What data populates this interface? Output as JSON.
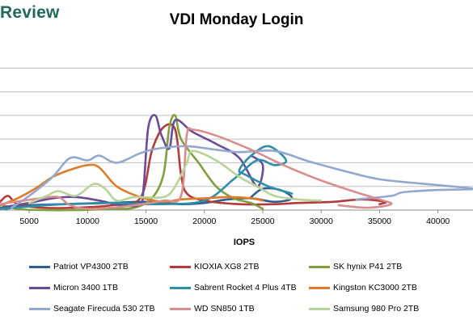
{
  "brand": "Review",
  "chart_data": {
    "type": "line",
    "title": "VDI Monday Login",
    "xlabel": "IOPS",
    "ylabel": "",
    "xlim": [
      2500,
      43000
    ],
    "ylim": [
      0,
      7
    ],
    "x_ticks": [
      5000,
      10000,
      15000,
      20000,
      25000,
      30000,
      35000,
      40000
    ],
    "x_tick_labels": [
      "5000",
      "10000",
      "15000",
      "20000",
      "25000",
      "30000",
      "35000",
      "40000"
    ],
    "y_gridlines": [
      1,
      2,
      3,
      4,
      5,
      6
    ],
    "grid": true,
    "legend_position": "bottom",
    "series": [
      {
        "name": "Patriot VP4300 2TB",
        "color": "#2e5f8e",
        "points": [
          [
            3000,
            0.05
          ],
          [
            5000,
            0.2
          ],
          [
            8000,
            0.25
          ],
          [
            12000,
            0.3
          ],
          [
            15000,
            0.35
          ],
          [
            18000,
            0.25
          ],
          [
            20000,
            0.3
          ],
          [
            22000,
            0.45
          ],
          [
            24000,
            0.5
          ],
          [
            26000,
            0.35
          ],
          [
            27500,
            0.5
          ],
          [
            26500,
            0.85
          ],
          [
            25000,
            0.9
          ],
          [
            24000,
            0.55
          ]
        ]
      },
      {
        "name": "KIOXIA XG8 2TB",
        "color": "#b33b3b",
        "points": [
          [
            2500,
            0.35
          ],
          [
            3200,
            0.6
          ],
          [
            4000,
            0.25
          ],
          [
            6000,
            0.1
          ],
          [
            9000,
            0.1
          ],
          [
            12000,
            0.2
          ],
          [
            14500,
            0.5
          ],
          [
            15500,
            2.5
          ],
          [
            16500,
            3.5
          ],
          [
            17500,
            3.4
          ],
          [
            18000,
            1.5
          ],
          [
            18500,
            0.7
          ],
          [
            20000,
            0.4
          ],
          [
            23000,
            0.25
          ],
          [
            26000,
            0.25
          ],
          [
            28000,
            0.3
          ],
          [
            31000,
            0.35
          ],
          [
            33500,
            0.45
          ],
          [
            35500,
            0.35
          ],
          [
            35000,
            0.25
          ]
        ]
      },
      {
        "name": "SK hynix P41 2TB",
        "color": "#7fa13d",
        "points": [
          [
            2500,
            0.25
          ],
          [
            4000,
            0.05
          ],
          [
            6000,
            0.0
          ],
          [
            9000,
            0.0
          ],
          [
            12000,
            0.05
          ],
          [
            14000,
            0.1
          ],
          [
            15500,
            0.5
          ],
          [
            16500,
            1.5
          ],
          [
            17000,
            3.5
          ],
          [
            17500,
            4.0
          ],
          [
            18000,
            3.0
          ],
          [
            19500,
            2.0
          ],
          [
            21000,
            1.0
          ],
          [
            22500,
            0.5
          ],
          [
            24000,
            0.3
          ],
          [
            25000,
            0.05
          ]
        ]
      },
      {
        "name": "Micron 3400 1TB",
        "color": "#6b4a99",
        "points": [
          [
            2500,
            0.1
          ],
          [
            5000,
            0.3
          ],
          [
            7000,
            0.5
          ],
          [
            9000,
            0.55
          ],
          [
            11000,
            0.4
          ],
          [
            13000,
            0.2
          ],
          [
            14500,
            0.25
          ],
          [
            14800,
            1.0
          ],
          [
            15200,
            3.5
          ],
          [
            15800,
            4.0
          ],
          [
            16300,
            3.2
          ],
          [
            17000,
            2.6
          ],
          [
            17500,
            3.8
          ],
          [
            19000,
            3.3
          ],
          [
            21000,
            2.8
          ],
          [
            23000,
            2.2
          ],
          [
            24500,
            1.0
          ],
          [
            25000,
            1.9
          ],
          [
            24000,
            2.3
          ]
        ]
      },
      {
        "name": "Sabrent Rocket 4 Plus 4TB",
        "color": "#2b8fa8",
        "points": [
          [
            2500,
            0.05
          ],
          [
            5000,
            0.15
          ],
          [
            8000,
            0.25
          ],
          [
            12000,
            0.3
          ],
          [
            16000,
            0.25
          ],
          [
            20000,
            0.4
          ],
          [
            22500,
            1.3
          ],
          [
            24500,
            2.1
          ],
          [
            26000,
            1.9
          ],
          [
            27000,
            2.1
          ],
          [
            25500,
            2.7
          ],
          [
            24000,
            2.3
          ],
          [
            23000,
            1.7
          ],
          [
            23500,
            1.5
          ],
          [
            25500,
            1.0
          ],
          [
            27500,
            0.7
          ]
        ]
      },
      {
        "name": "Kingston KC3000 2TB",
        "color": "#e07b2b",
        "points": [
          [
            2500,
            0.2
          ],
          [
            4000,
            0.5
          ],
          [
            5500,
            0.9
          ],
          [
            7000,
            1.4
          ],
          [
            8500,
            1.7
          ],
          [
            10000,
            1.9
          ],
          [
            11000,
            1.8
          ],
          [
            12500,
            1.0
          ],
          [
            14500,
            0.55
          ],
          [
            16500,
            0.35
          ],
          [
            18000,
            0.45
          ],
          [
            20000,
            0.5
          ],
          [
            22000,
            0.55
          ],
          [
            24000,
            0.5
          ],
          [
            25000,
            0.4
          ]
        ]
      },
      {
        "name": "Seagate Firecuda 530 2TB",
        "color": "#93a8cf",
        "points": [
          [
            3500,
            0.1
          ],
          [
            5000,
            0.6
          ],
          [
            7000,
            1.4
          ],
          [
            8500,
            2.2
          ],
          [
            10000,
            2.1
          ],
          [
            11000,
            2.3
          ],
          [
            12500,
            2.0
          ],
          [
            14500,
            2.4
          ],
          [
            16000,
            2.6
          ],
          [
            18500,
            2.7
          ],
          [
            21000,
            2.55
          ],
          [
            23000,
            2.45
          ],
          [
            26000,
            2.5
          ],
          [
            29000,
            2.05
          ],
          [
            32000,
            1.65
          ],
          [
            35000,
            1.3
          ],
          [
            39000,
            1.1
          ],
          [
            43000,
            0.9
          ],
          [
            40000,
            0.85
          ],
          [
            37000,
            0.75
          ],
          [
            36000,
            0.6
          ],
          [
            33000,
            0.45
          ]
        ]
      },
      {
        "name": "WD SN850 1TB",
        "color": "#d98e8e",
        "points": [
          [
            2500,
            0.25
          ],
          [
            4500,
            0.4
          ],
          [
            6000,
            0.5
          ],
          [
            7500,
            0.55
          ],
          [
            8500,
            0.2
          ],
          [
            10000,
            0.05
          ],
          [
            12000,
            0.1
          ],
          [
            14000,
            0.2
          ],
          [
            16500,
            0.4
          ],
          [
            18000,
            0.6
          ],
          [
            18500,
            3.2
          ],
          [
            19000,
            3.4
          ],
          [
            21000,
            3.15
          ],
          [
            24000,
            2.55
          ],
          [
            27000,
            1.85
          ],
          [
            30000,
            1.25
          ],
          [
            33000,
            0.75
          ],
          [
            35000,
            0.45
          ],
          [
            36000,
            0.25
          ],
          [
            34000,
            0.1
          ],
          [
            31500,
            0.2
          ]
        ]
      },
      {
        "name": "Samsung 980 Pro 2TB",
        "color": "#b8d39a",
        "points": [
          [
            5000,
            0.3
          ],
          [
            6500,
            0.6
          ],
          [
            7500,
            0.8
          ],
          [
            9000,
            0.6
          ],
          [
            10500,
            1.1
          ],
          [
            11500,
            0.9
          ],
          [
            12500,
            0.4
          ],
          [
            14000,
            0.55
          ],
          [
            16500,
            0.55
          ],
          [
            17500,
            1.0
          ],
          [
            18500,
            2.0
          ],
          [
            19000,
            2.5
          ],
          [
            21000,
            2.1
          ],
          [
            23000,
            1.4
          ],
          [
            24500,
            1.0
          ],
          [
            26000,
            0.6
          ],
          [
            28000,
            0.45
          ],
          [
            30000,
            0.4
          ]
        ]
      }
    ]
  }
}
